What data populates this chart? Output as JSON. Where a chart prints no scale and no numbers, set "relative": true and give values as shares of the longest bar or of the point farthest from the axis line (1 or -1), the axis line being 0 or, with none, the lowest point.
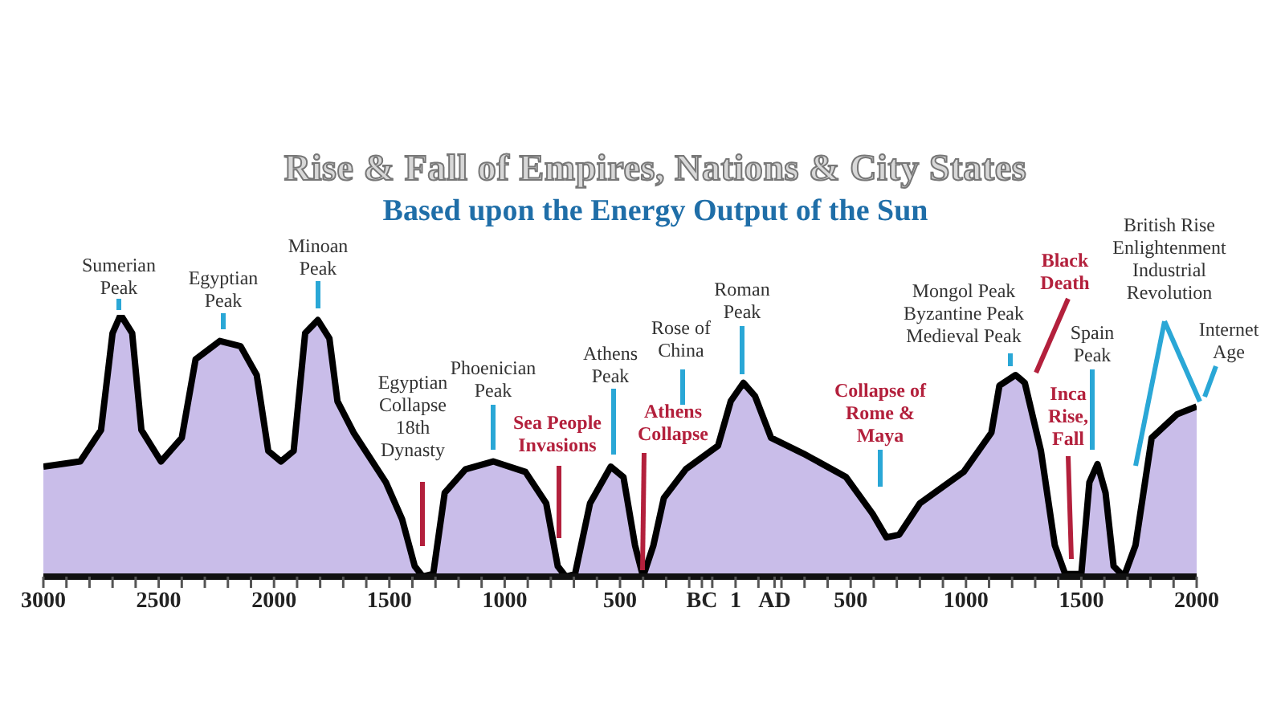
{
  "chart_data": {
    "type": "area",
    "title": "Rise & Fall of Empires, Nations & City States",
    "subtitle": "Based upon the Energy Output of the Sun",
    "relative": true,
    "color": "#c9bde9",
    "xlim": [
      -3000,
      2000
    ],
    "xticks": [
      {
        "value": -3000,
        "label": "3000"
      },
      {
        "value": -2900,
        "label": null
      },
      {
        "value": -2800,
        "label": null
      },
      {
        "value": -2700,
        "label": null
      },
      {
        "value": -2600,
        "label": null
      },
      {
        "value": -2500,
        "label": "2500"
      },
      {
        "value": -2400,
        "label": null
      },
      {
        "value": -2300,
        "label": null
      },
      {
        "value": -2200,
        "label": null
      },
      {
        "value": -2100,
        "label": null
      },
      {
        "value": -2000,
        "label": "2000"
      },
      {
        "value": -1900,
        "label": null
      },
      {
        "value": -1800,
        "label": null
      },
      {
        "value": -1700,
        "label": null
      },
      {
        "value": -1600,
        "label": null
      },
      {
        "value": -1500,
        "label": "1500"
      },
      {
        "value": -1400,
        "label": null
      },
      {
        "value": -1300,
        "label": null
      },
      {
        "value": -1200,
        "label": null
      },
      {
        "value": -1100,
        "label": null
      },
      {
        "value": -1000,
        "label": "1000"
      },
      {
        "value": -900,
        "label": null
      },
      {
        "value": -800,
        "label": null
      },
      {
        "value": -700,
        "label": null
      },
      {
        "value": -600,
        "label": null
      },
      {
        "value": -500,
        "label": "500"
      },
      {
        "value": -400,
        "label": null
      },
      {
        "value": -300,
        "label": null
      },
      {
        "value": -200,
        "label": null
      },
      {
        "value": -145,
        "label": "BC"
      },
      {
        "value": -100,
        "label": null
      },
      1,
      {
        "value": 100,
        "label": null
      },
      {
        "value": 170,
        "label": "AD"
      },
      {
        "value": 200,
        "label": null
      },
      {
        "value": 300,
        "label": null
      },
      {
        "value": 400,
        "label": null
      },
      {
        "value": 500,
        "label": "500"
      },
      {
        "value": 600,
        "label": null
      },
      {
        "value": 700,
        "label": null
      },
      {
        "value": 800,
        "label": null
      },
      {
        "value": 900,
        "label": null
      },
      1000,
      {
        "value": 1100,
        "label": null
      },
      {
        "value": 1200,
        "label": null
      },
      {
        "value": 1300,
        "label": null
      },
      {
        "value": 1400,
        "label": null
      },
      1500,
      {
        "value": 1600,
        "label": null
      },
      {
        "value": 1700,
        "label": null
      },
      {
        "value": 1800,
        "label": null
      },
      {
        "value": 1900,
        "label": null
      },
      2000
    ],
    "x": [
      -3000,
      -2840,
      -2750,
      -2700,
      -2665,
      -2615,
      -2575,
      -2490,
      -2400,
      -2340,
      -2235,
      -2145,
      -2075,
      -2025,
      -1970,
      -1915,
      -1865,
      -1810,
      -1760,
      -1725,
      -1655,
      -1515,
      -1445,
      -1390,
      -1355,
      -1310,
      -1260,
      -1170,
      -1050,
      -910,
      -820,
      -770,
      -735,
      -695,
      -630,
      -540,
      -485,
      -435,
      -400,
      -355,
      -310,
      -215,
      -75,
      -20,
      35,
      85,
      155,
      295,
      480,
      595,
      655,
      710,
      800,
      990,
      1110,
      1145,
      1215,
      1255,
      1325,
      1385,
      1430,
      1500,
      1535,
      1570,
      1605,
      1640,
      1685,
      1735,
      1805,
      1915,
      2000
    ],
    "values": [
      0.42,
      0.44,
      0.56,
      0.93,
      1,
      0.93,
      0.56,
      0.44,
      0.53,
      0.83,
      0.9,
      0.88,
      0.77,
      0.48,
      0.44,
      0.48,
      0.93,
      0.98,
      0.91,
      0.67,
      0.55,
      0.36,
      0.22,
      0.04,
      0,
      0.01,
      0.32,
      0.41,
      0.44,
      0.4,
      0.28,
      0.04,
      0,
      0.01,
      0.28,
      0.42,
      0.38,
      0.12,
      0,
      0.12,
      0.3,
      0.41,
      0.5,
      0.67,
      0.74,
      0.69,
      0.53,
      0.47,
      0.38,
      0.24,
      0.15,
      0.16,
      0.28,
      0.4,
      0.55,
      0.73,
      0.77,
      0.74,
      0.48,
      0.12,
      0.01,
      0.01,
      0.36,
      0.43,
      0.32,
      0.04,
      0,
      0.12,
      0.53,
      0.62,
      0.65
    ],
    "annotations": [
      "Sumerian\nPeak",
      "Egyptian\nPeak",
      "Minoan\nPeak",
      "Egyptian\nCollapse\n18th\nDynasty",
      "Phoenician\nPeak",
      "Sea People\nInvasions",
      "Athens\nPeak",
      "Athens\nCollapse",
      "Rose of\nChina",
      "Roman\nPeak",
      "Collapse of\nRome &\nMaya",
      "Mongol Peak\nByzantine Peak\nMedieval Peak",
      "Black\nDeath",
      "Inca\nRise,\nFall",
      "Spain\nPeak",
      "British Rise\nEnlightenment\nIndustrial\nRevolution",
      "Internet\nAge"
    ]
  }
}
